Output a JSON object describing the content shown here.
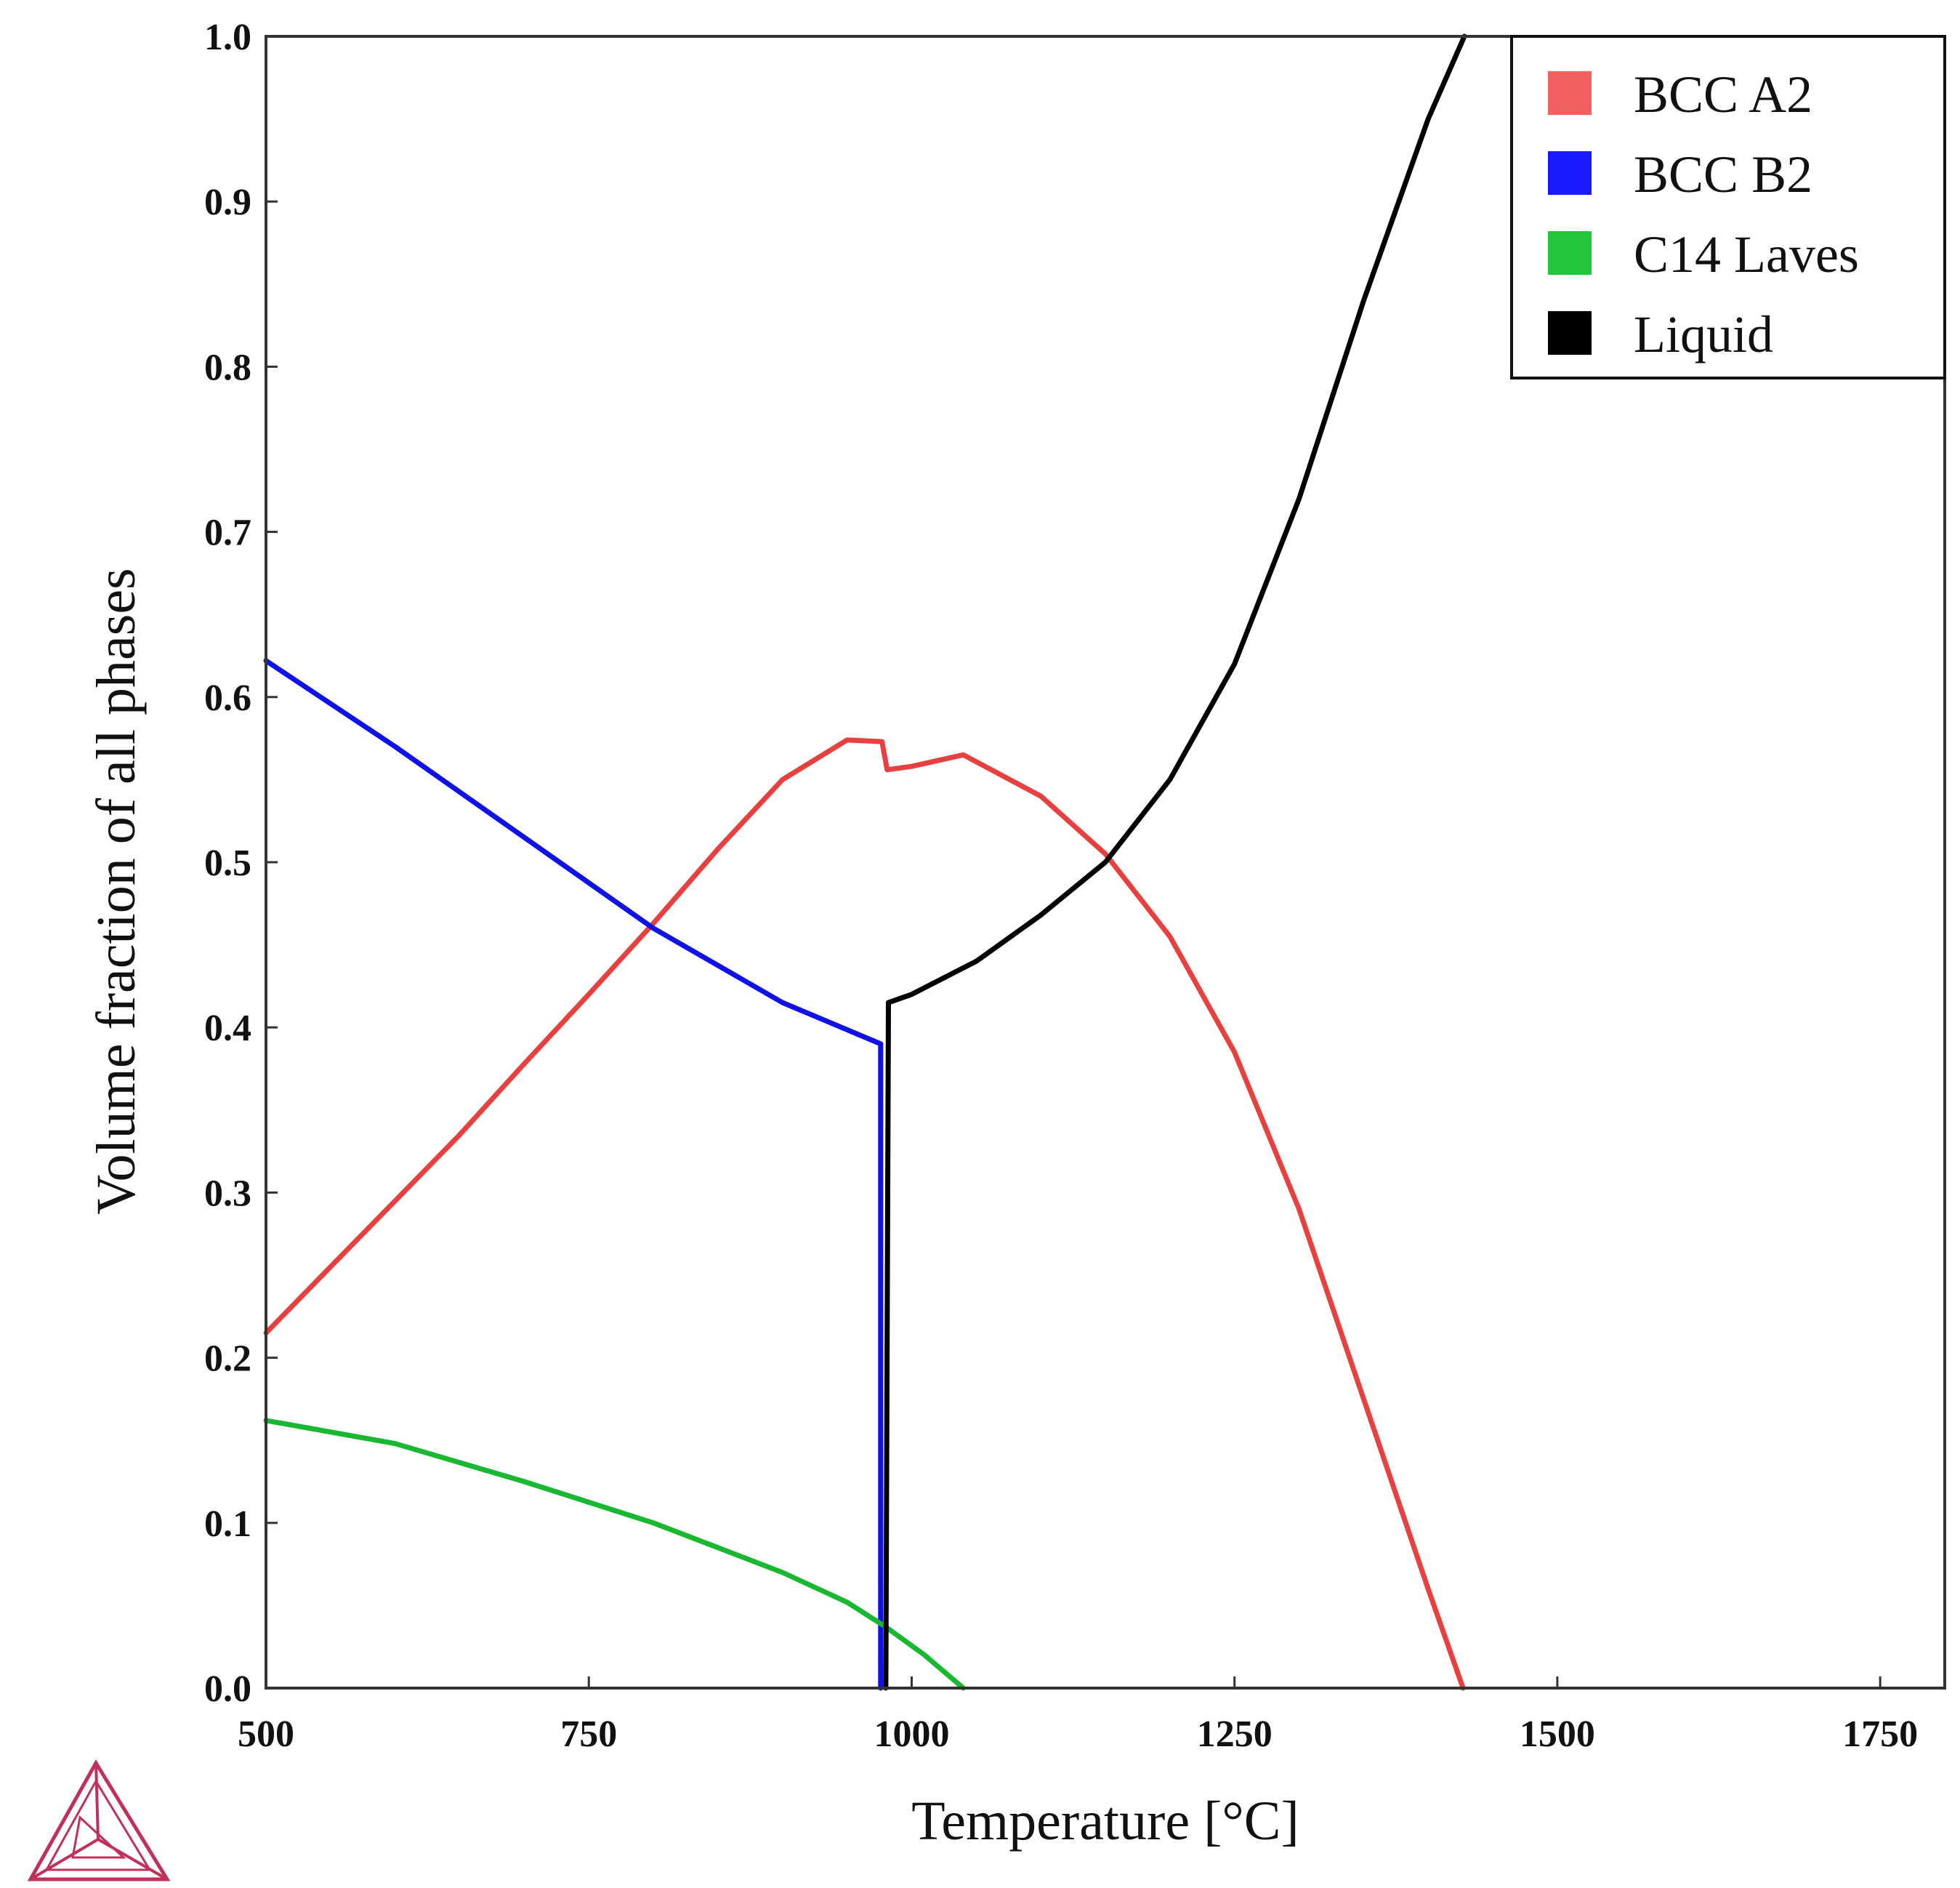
{
  "chart_data": {
    "type": "line",
    "title": "",
    "xlabel": "Temperature [°C]",
    "ylabel": "Volume fraction of all phases",
    "xlim": [
      500,
      1800
    ],
    "ylim": [
      0.0,
      1.0
    ],
    "xticks": [
      500,
      750,
      1000,
      1250,
      1500,
      1750
    ],
    "xtick_labels": [
      "500",
      "750",
      "1000",
      "1250",
      "1500",
      "1750"
    ],
    "yticks": [
      0.0,
      0.1,
      0.2,
      0.3,
      0.4,
      0.5,
      0.6,
      0.7,
      0.8,
      0.9,
      1.0
    ],
    "ytick_labels": [
      "0.0",
      "0.1",
      "0.2",
      "0.3",
      "0.4",
      "0.5",
      "0.6",
      "0.7",
      "0.8",
      "0.9",
      "1.0"
    ],
    "grid": false,
    "legend_position": "top-right",
    "series": [
      {
        "name": "BCC A2",
        "color": "#e8403f",
        "legend_color": "#f26060",
        "points": [
          [
            500,
            0.215
          ],
          [
            550,
            0.255
          ],
          [
            600,
            0.295
          ],
          [
            650,
            0.335
          ],
          [
            700,
            0.378
          ],
          [
            750,
            0.42
          ],
          [
            800,
            0.463
          ],
          [
            850,
            0.508
          ],
          [
            900,
            0.55
          ],
          [
            950,
            0.574
          ],
          [
            977,
            0.573
          ],
          [
            981,
            0.556
          ],
          [
            1000,
            0.558
          ],
          [
            1040,
            0.565
          ],
          [
            1100,
            0.54
          ],
          [
            1150,
            0.505
          ],
          [
            1200,
            0.455
          ],
          [
            1250,
            0.385
          ],
          [
            1300,
            0.29
          ],
          [
            1350,
            0.175
          ],
          [
            1400,
            0.06
          ],
          [
            1427,
            0.0
          ]
        ]
      },
      {
        "name": "BCC B2",
        "color": "#1010e8",
        "legend_color": "#1a1aff",
        "points": [
          [
            500,
            0.622
          ],
          [
            600,
            0.57
          ],
          [
            700,
            0.515
          ],
          [
            800,
            0.46
          ],
          [
            900,
            0.415
          ],
          [
            976,
            0.39
          ],
          [
            976,
            0.0
          ]
        ]
      },
      {
        "name": "C14 Laves",
        "color": "#18b830",
        "legend_color": "#22c73a",
        "points": [
          [
            500,
            0.162
          ],
          [
            600,
            0.148
          ],
          [
            700,
            0.125
          ],
          [
            800,
            0.1
          ],
          [
            900,
            0.07
          ],
          [
            950,
            0.052
          ],
          [
            980,
            0.037
          ],
          [
            1010,
            0.02
          ],
          [
            1040,
            0.0
          ]
        ]
      },
      {
        "name": "Liquid",
        "color": "#000000",
        "legend_color": "#000000",
        "points": [
          [
            980,
            0.0
          ],
          [
            982,
            0.415
          ],
          [
            1000,
            0.42
          ],
          [
            1050,
            0.44
          ],
          [
            1100,
            0.468
          ],
          [
            1150,
            0.5
          ],
          [
            1200,
            0.55
          ],
          [
            1250,
            0.62
          ],
          [
            1300,
            0.72
          ],
          [
            1350,
            0.84
          ],
          [
            1400,
            0.95
          ],
          [
            1428,
            1.0
          ]
        ]
      }
    ]
  },
  "logo": {
    "name": "thermo-calc-logo",
    "color": "#c0305a"
  }
}
